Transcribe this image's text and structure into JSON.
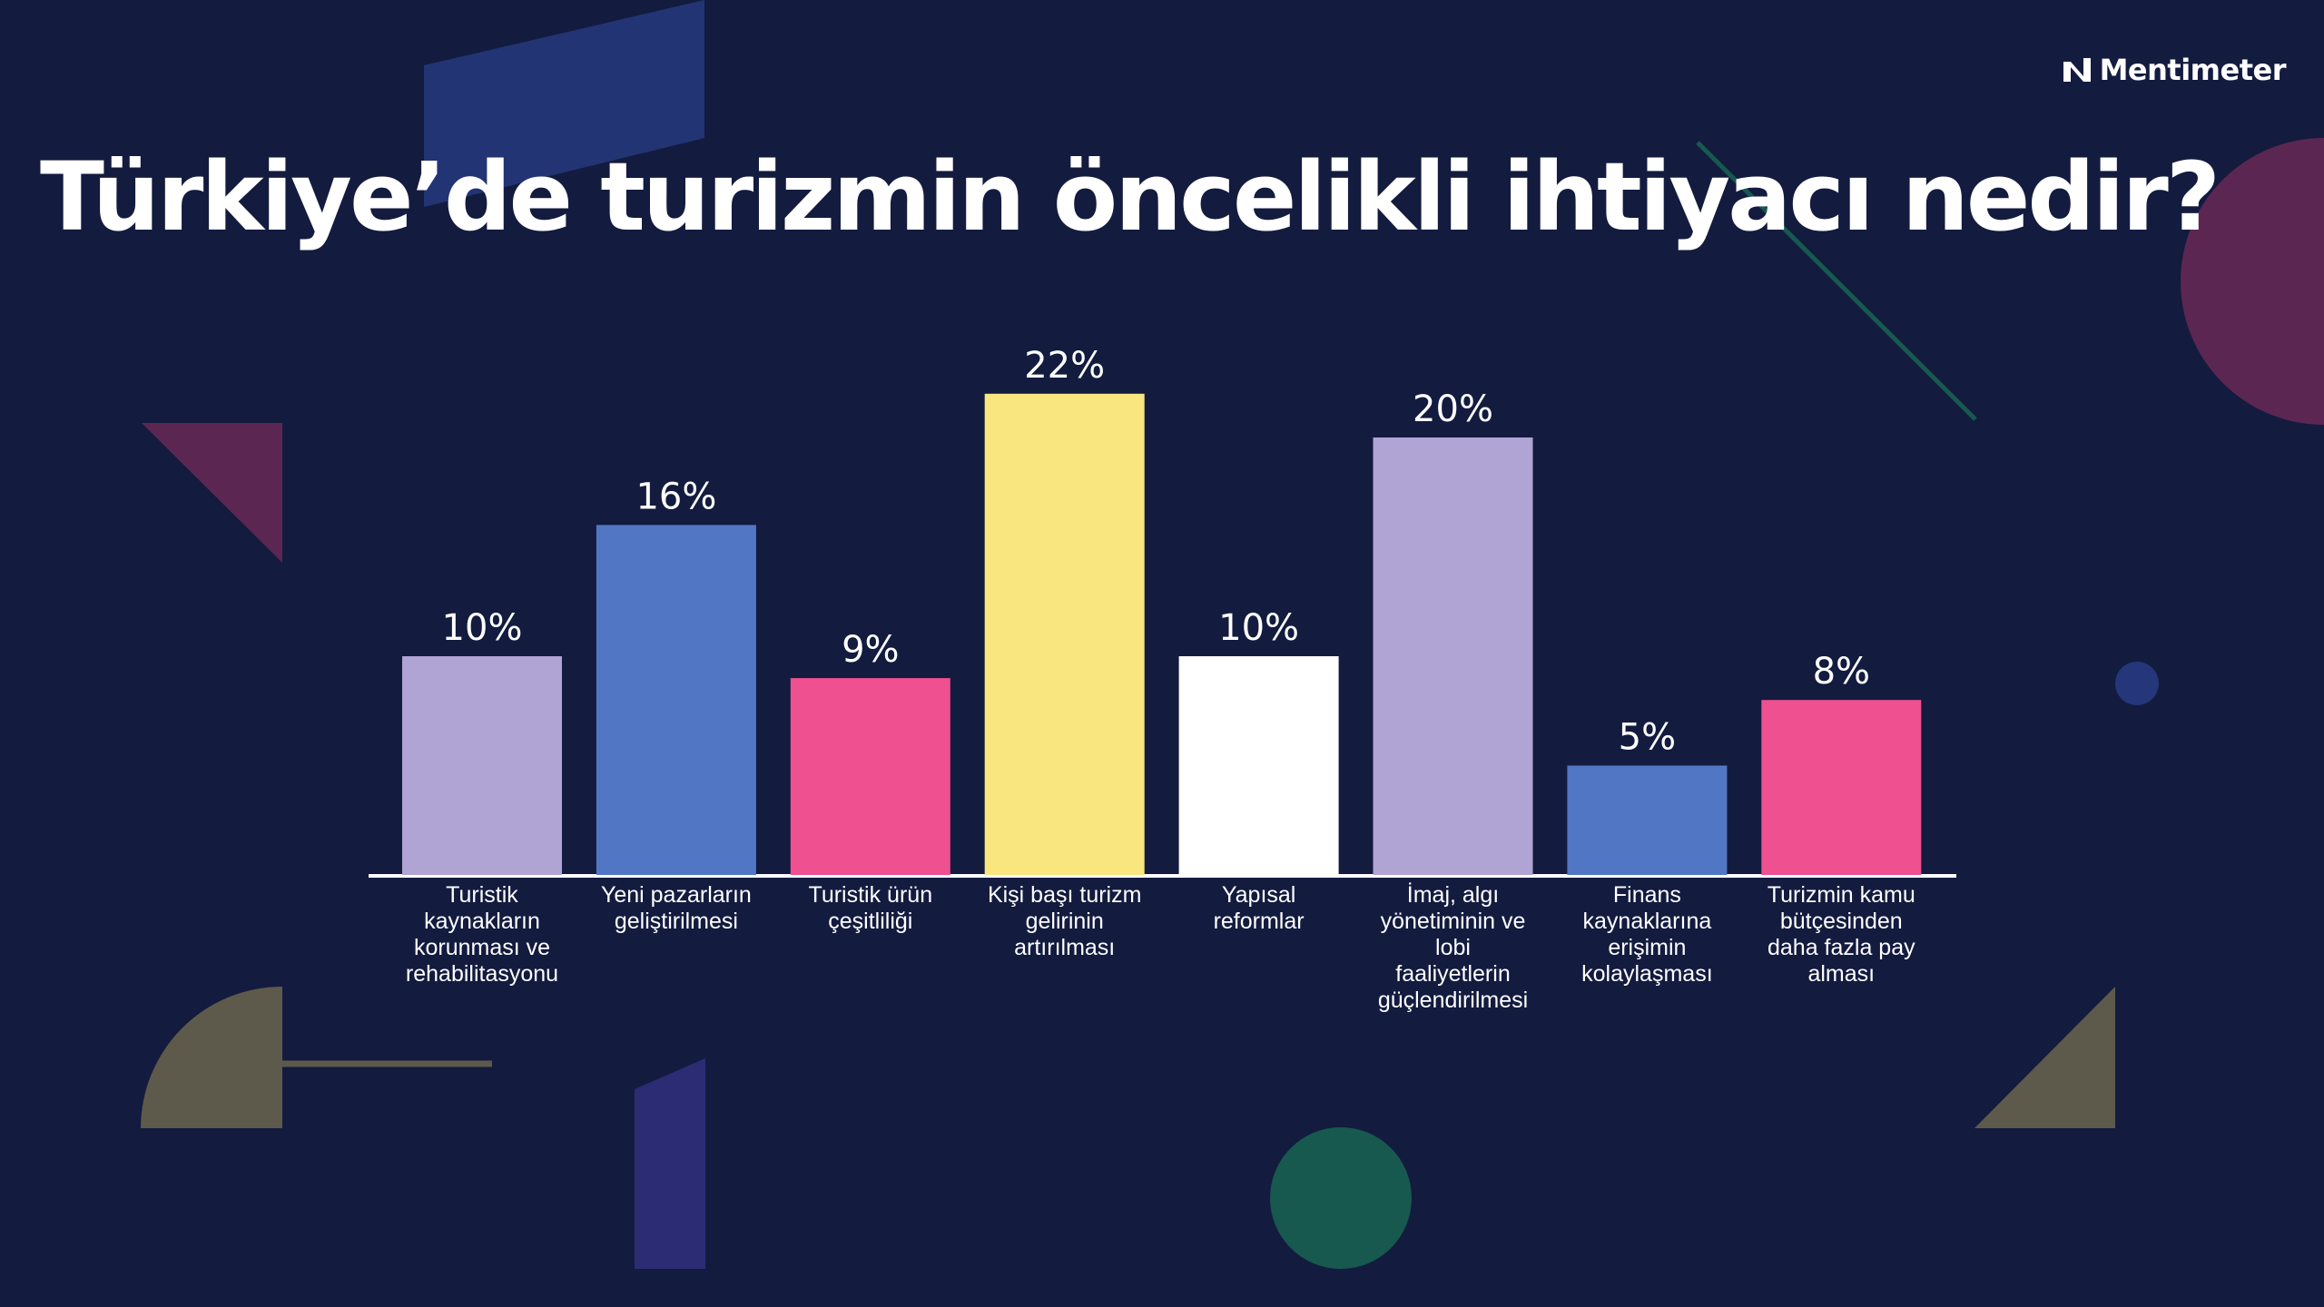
{
  "brand": {
    "name": "Mentimeter",
    "icon": "mentimeter-logo-icon"
  },
  "slide": {
    "title": "Türkiye’de turizmin öncelikli ihtiyacı nedir?"
  },
  "colors": {
    "background": "#131b3f",
    "lavender": "#b0a4d4",
    "blue": "#5177c4",
    "pink": "#ee5090",
    "yellow": "#f9e67f",
    "white": "#ffffff",
    "axis": "#ffffff"
  },
  "chart_data": {
    "type": "bar",
    "title": "Türkiye’de turizmin öncelikli ihtiyacı nedir?",
    "categories": [
      [
        "Turistik",
        "kaynakların",
        "korunması ve",
        "rehabilitasyonu"
      ],
      [
        "Yeni pazarların",
        "geliştirilmesi"
      ],
      [
        "Turistik ürün",
        "çeşitliliği"
      ],
      [
        "Kişi başı turizm",
        "gelirinin",
        "artırılması"
      ],
      [
        "Yapısal",
        "reformlar"
      ],
      [
        "İmaj, algı",
        "yönetiminin ve",
        "lobi",
        "faaliyetlerin",
        "güçlendirilmesi"
      ],
      [
        "Finans",
        "kaynaklarına",
        "erişimin",
        "kolaylaşması"
      ],
      [
        "Turizmin kamu",
        "bütçesinden",
        "daha fazla pay",
        "alması"
      ]
    ],
    "values": [
      10,
      16,
      9,
      22,
      10,
      20,
      5,
      8
    ],
    "value_labels": [
      "10%",
      "16%",
      "9%",
      "22%",
      "10%",
      "20%",
      "5%",
      "8%"
    ],
    "bar_colors": [
      "#b0a4d4",
      "#5177c4",
      "#ee5090",
      "#f9e67f",
      "#ffffff",
      "#b0a4d4",
      "#5177c4",
      "#ee5090"
    ],
    "unit": "%",
    "ylim": [
      0,
      22
    ],
    "grid": false,
    "legend": "none"
  }
}
